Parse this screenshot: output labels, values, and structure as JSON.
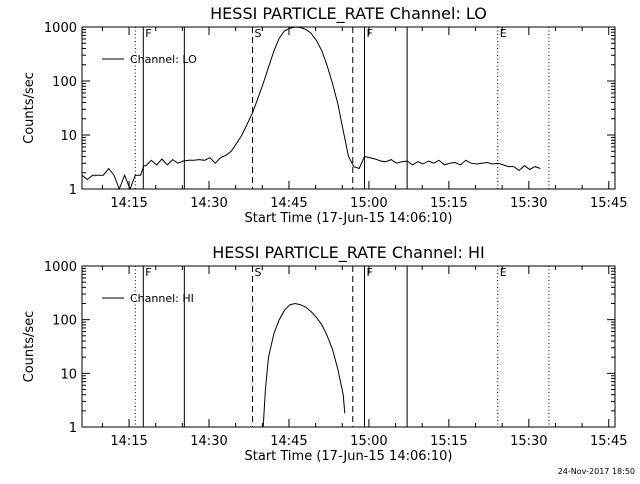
{
  "chart_data": [
    {
      "type": "line",
      "title": "HESSI PARTICLE_RATE Channel: LO",
      "xlabel": "Start Time (17-Jun-15 14:06:10)",
      "ylabel": "Counts/sec",
      "x_unit": "minutes after 14:06:10",
      "xlim": [
        0,
        100
      ],
      "ylim": [
        1,
        1000
      ],
      "yscale": "log",
      "x_ticks": [
        {
          "label": "14:15",
          "value": 8.83
        },
        {
          "label": "14:30",
          "value": 23.83
        },
        {
          "label": "14:45",
          "value": 38.83
        },
        {
          "label": "15:00",
          "value": 53.83
        },
        {
          "label": "15:15",
          "value": 68.83
        },
        {
          "label": "15:30",
          "value": 83.83
        },
        {
          "label": "15:45",
          "value": 98.83
        }
      ],
      "y_ticks": [
        {
          "label": "1",
          "value": 1
        },
        {
          "label": "10",
          "value": 10
        },
        {
          "label": "100",
          "value": 100
        },
        {
          "label": "1000",
          "value": 1000
        }
      ],
      "legend": {
        "position": "top-left",
        "entries": [
          "Channel: LO"
        ]
      },
      "vertical_markers": [
        {
          "x": 10.0,
          "style": "dotted",
          "label": ""
        },
        {
          "x": 11.5,
          "style": "solid",
          "label": "F"
        },
        {
          "x": 19.2,
          "style": "solid",
          "label": ""
        },
        {
          "x": 32.0,
          "style": "dashed",
          "label": "S"
        },
        {
          "x": 50.8,
          "style": "dashed",
          "label": ""
        },
        {
          "x": 53.0,
          "style": "solid",
          "label": "F"
        },
        {
          "x": 61.0,
          "style": "solid",
          "label": ""
        },
        {
          "x": 78.0,
          "style": "dotted",
          "label": "E"
        },
        {
          "x": 87.6,
          "style": "dotted",
          "label": ""
        }
      ],
      "series": [
        {
          "name": "Channel: LO",
          "x": [
            0,
            1,
            2,
            3,
            4,
            5,
            6,
            7,
            8,
            9,
            10,
            11,
            11.6,
            12,
            13,
            14,
            15,
            16,
            17,
            18,
            19,
            20,
            21,
            22,
            23,
            24,
            25,
            26,
            27,
            28,
            29,
            30,
            31,
            32,
            33,
            34,
            35,
            36,
            37,
            38,
            39,
            40,
            41,
            42,
            43,
            44,
            45,
            46,
            47,
            48,
            49,
            50,
            51,
            52,
            53,
            54,
            55,
            56,
            57,
            58,
            59,
            60,
            61,
            62,
            63,
            64,
            65,
            66,
            67,
            68,
            69,
            70,
            71,
            72,
            73,
            74,
            75,
            76,
            77,
            78,
            79,
            80,
            81,
            82,
            83,
            84,
            85,
            86
          ],
          "y": [
            1.8,
            1.5,
            1.8,
            1.8,
            1.8,
            2.4,
            1.8,
            1.0,
            1.8,
            1.0,
            1.8,
            1.8,
            2.7,
            2.7,
            3.4,
            2.8,
            3.6,
            2.8,
            3.5,
            3.0,
            3.3,
            3.4,
            3.4,
            3.5,
            3.4,
            3.8,
            3.0,
            3.8,
            4.2,
            5.0,
            7.0,
            10.0,
            16.0,
            26.0,
            48.0,
            90.0,
            180.0,
            360.0,
            620.0,
            850.0,
            950.0,
            1000.0,
            980.0,
            900.0,
            760.0,
            560.0,
            360.0,
            190.0,
            90.0,
            38.0,
            12.0,
            4.0,
            2.6,
            2.4,
            4.0,
            3.8,
            3.6,
            3.3,
            3.2,
            3.5,
            3.0,
            3.2,
            3.3,
            2.8,
            3.2,
            2.9,
            3.3,
            3.0,
            3.4,
            2.8,
            3.0,
            3.1,
            2.8,
            3.4,
            3.0,
            2.9,
            3.0,
            3.1,
            2.9,
            3.0,
            2.8,
            2.6,
            2.6,
            2.2,
            2.7,
            2.3,
            2.6,
            2.4
          ]
        }
      ]
    },
    {
      "type": "line",
      "title": "HESSI PARTICLE_RATE Channel: HI",
      "xlabel": "Start Time (17-Jun-15 14:06:10)",
      "ylabel": "Counts/sec",
      "x_unit": "minutes after 14:06:10",
      "xlim": [
        0,
        100
      ],
      "ylim": [
        1,
        1000
      ],
      "yscale": "log",
      "x_ticks": [
        {
          "label": "14:15",
          "value": 8.83
        },
        {
          "label": "14:30",
          "value": 23.83
        },
        {
          "label": "14:45",
          "value": 38.83
        },
        {
          "label": "15:00",
          "value": 53.83
        },
        {
          "label": "15:15",
          "value": 68.83
        },
        {
          "label": "15:30",
          "value": 83.83
        },
        {
          "label": "15:45",
          "value": 98.83
        }
      ],
      "y_ticks": [
        {
          "label": "1",
          "value": 1
        },
        {
          "label": "10",
          "value": 10
        },
        {
          "label": "100",
          "value": 100
        },
        {
          "label": "1000",
          "value": 1000
        }
      ],
      "legend": {
        "position": "top-left",
        "entries": [
          "Channel: HI"
        ]
      },
      "vertical_markers": [
        {
          "x": 10.0,
          "style": "dotted",
          "label": ""
        },
        {
          "x": 11.5,
          "style": "solid",
          "label": "F"
        },
        {
          "x": 19.2,
          "style": "solid",
          "label": ""
        },
        {
          "x": 32.0,
          "style": "dashed",
          "label": "S"
        },
        {
          "x": 50.8,
          "style": "dashed",
          "label": ""
        },
        {
          "x": 53.0,
          "style": "solid",
          "label": "F"
        },
        {
          "x": 61.0,
          "style": "solid",
          "label": ""
        },
        {
          "x": 78.0,
          "style": "dotted",
          "label": "E"
        },
        {
          "x": 87.6,
          "style": "dotted",
          "label": ""
        }
      ],
      "series": [
        {
          "name": "Channel: HI",
          "x": [
            34.0,
            34.4,
            35,
            36,
            37,
            38,
            39,
            40,
            41,
            42,
            43,
            44,
            45,
            46,
            47,
            48,
            49,
            49.3
          ],
          "y": [
            1.0,
            5.0,
            20.0,
            55.0,
            100.0,
            150.0,
            190.0,
            200.0,
            190.0,
            170.0,
            140.0,
            110.0,
            80.0,
            50.0,
            28.0,
            12.0,
            4.0,
            1.8
          ]
        }
      ]
    }
  ],
  "footer": {
    "timestamp": "24-Nov-2017 18:50"
  }
}
